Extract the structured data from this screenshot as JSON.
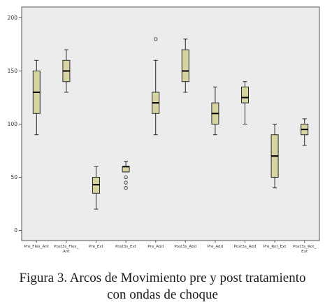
{
  "chart_data": {
    "type": "boxplot",
    "categories": [
      "Pre_Flex_Ant",
      "Post3s_Flex_Ant",
      "Pre_Ext",
      "Post3s_Ext",
      "Pre_Abd",
      "Post3s_Abd",
      "Pre_Add",
      "Post3s_Add",
      "Pre_Rot_Ext",
      "Post3s_Rot_Ext"
    ],
    "category_lines": [
      [
        "Pre_Flex_Ant"
      ],
      [
        "Post3s_Flex_",
        "Ant"
      ],
      [
        "Pre_Ext"
      ],
      [
        "Post3s_Ext"
      ],
      [
        "Pre_Abd"
      ],
      [
        "Post3s_Abd"
      ],
      [
        "Pre_Add"
      ],
      [
        "Post3s_Add"
      ],
      [
        "Pre_Rot_Ext"
      ],
      [
        "Post3s_Rot_",
        "Ext"
      ]
    ],
    "boxes": [
      {
        "category": "Pre_Flex_Ant",
        "min": 90,
        "q1": 110,
        "median": 130,
        "q3": 150,
        "max": 160,
        "outliers": []
      },
      {
        "category": "Post3s_Flex_Ant",
        "min": 130,
        "q1": 140,
        "median": 150,
        "q3": 160,
        "max": 170,
        "outliers": []
      },
      {
        "category": "Pre_Ext",
        "min": 20,
        "q1": 35,
        "median": 43,
        "q3": 50,
        "max": 60,
        "outliers": []
      },
      {
        "category": "Post3s_Ext",
        "min": 55,
        "q1": 55,
        "median": 60,
        "q3": 60,
        "max": 65,
        "outliers": [
          50,
          45,
          40
        ]
      },
      {
        "category": "Pre_Abd",
        "min": 90,
        "q1": 110,
        "median": 120,
        "q3": 130,
        "max": 160,
        "outliers": [
          180
        ]
      },
      {
        "category": "Post3s_Abd",
        "min": 130,
        "q1": 140,
        "median": 150,
        "q3": 170,
        "max": 180,
        "outliers": []
      },
      {
        "category": "Pre_Add",
        "min": 90,
        "q1": 100,
        "median": 110,
        "q3": 120,
        "max": 135,
        "outliers": []
      },
      {
        "category": "Post3s_Add",
        "min": 100,
        "q1": 120,
        "median": 125,
        "q3": 135,
        "max": 140,
        "outliers": []
      },
      {
        "category": "Pre_Rot_Ext",
        "min": 40,
        "q1": 50,
        "median": 70,
        "q3": 90,
        "max": 100,
        "outliers": []
      },
      {
        "category": "Post3s_Rot_Ext",
        "min": 80,
        "q1": 90,
        "median": 95,
        "q3": 100,
        "max": 105,
        "outliers": []
      }
    ],
    "ylim": [
      -10,
      210
    ],
    "yticks": [
      0,
      50,
      100,
      150,
      200
    ],
    "xlabel": "",
    "ylabel": "",
    "grid": false,
    "legend": "none",
    "colors": {
      "box_fill": "#d8d4a2",
      "box_stroke": "#2a2a2a",
      "median": "#000000",
      "plot_background": "#ececec",
      "frame": "#555555"
    }
  },
  "caption": {
    "line1": "Figura 3. Arcos de Movimiento pre y post tratamiento",
    "line2": "con ondas de choque"
  }
}
